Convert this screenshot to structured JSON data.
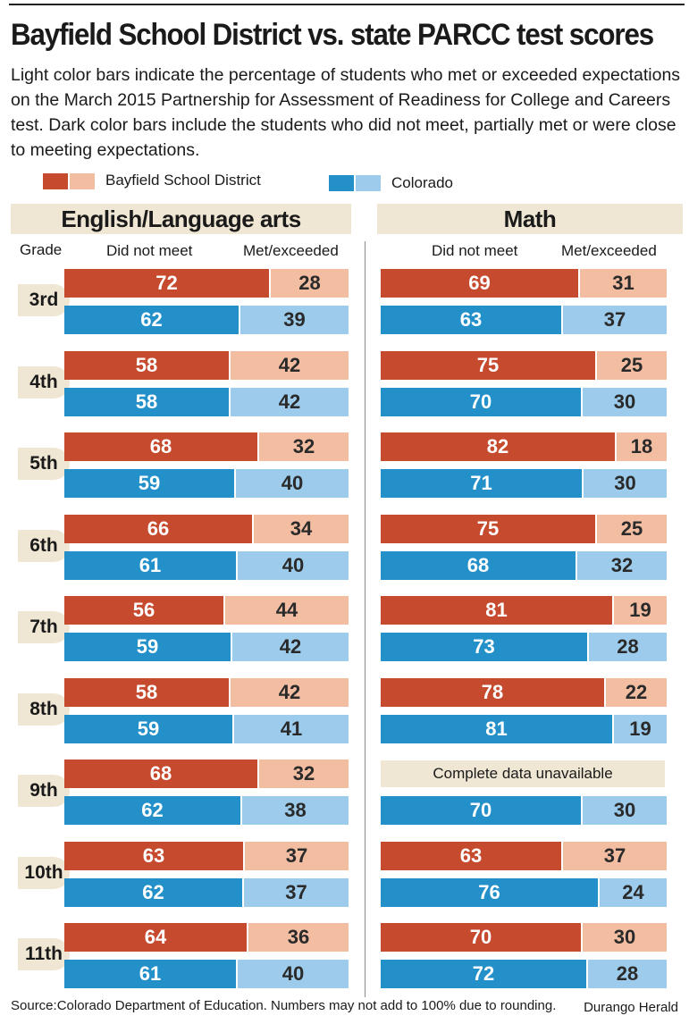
{
  "title": "Bayfield School District vs. state PARCC test scores",
  "subtitle": "Light color bars indicate the percentage of students who met or exceeded expectations on the March 2015 Partnership for Assessment of Readiness for College and Careers test. Dark color bars include the students who did not meet, partially met or were close to meeting expectations.",
  "legend": {
    "bayfield": "Bayfield School District",
    "colorado": "Colorado"
  },
  "colors": {
    "bayfield_dark": "#c64a2e",
    "bayfield_light": "#f3bda2",
    "colorado_dark": "#2390c9",
    "colorado_light": "#9ccbeb"
  },
  "headers": {
    "grade": "Grade",
    "did_not_meet": "Did not meet",
    "met_exceeded": "Met/exceeded"
  },
  "source": "Source:Colorado Department of Education. Numbers may not add to 100% due to rounding.",
  "credit": "Durango Herald",
  "chart_data": [
    {
      "type": "bar",
      "title": "English/Language arts",
      "stacked": true,
      "categories": [
        "3rd",
        "4th",
        "5th",
        "6th",
        "7th",
        "8th",
        "9th",
        "10th",
        "11th"
      ],
      "series": [
        {
          "name": "Bayfield School District",
          "did_not_meet": [
            72,
            58,
            68,
            66,
            56,
            58,
            68,
            63,
            64
          ],
          "met_exceeded": [
            28,
            42,
            32,
            34,
            44,
            42,
            32,
            37,
            36
          ]
        },
        {
          "name": "Colorado",
          "did_not_meet": [
            62,
            58,
            59,
            61,
            59,
            59,
            62,
            62,
            61
          ],
          "met_exceeded": [
            39,
            42,
            40,
            40,
            42,
            41,
            38,
            37,
            40
          ]
        }
      ]
    },
    {
      "type": "bar",
      "title": "Math",
      "stacked": true,
      "categories": [
        "3rd",
        "4th",
        "5th",
        "6th",
        "7th",
        "8th",
        "9th",
        "10th",
        "11th"
      ],
      "unavailable_note": "Complete data unavailable",
      "series": [
        {
          "name": "Bayfield School District",
          "did_not_meet": [
            69,
            75,
            82,
            75,
            81,
            78,
            null,
            63,
            70
          ],
          "met_exceeded": [
            31,
            25,
            18,
            25,
            19,
            22,
            null,
            37,
            30
          ]
        },
        {
          "name": "Colorado",
          "did_not_meet": [
            63,
            70,
            71,
            68,
            73,
            81,
            70,
            76,
            72
          ],
          "met_exceeded": [
            37,
            30,
            30,
            32,
            28,
            19,
            30,
            24,
            28
          ]
        }
      ]
    }
  ]
}
